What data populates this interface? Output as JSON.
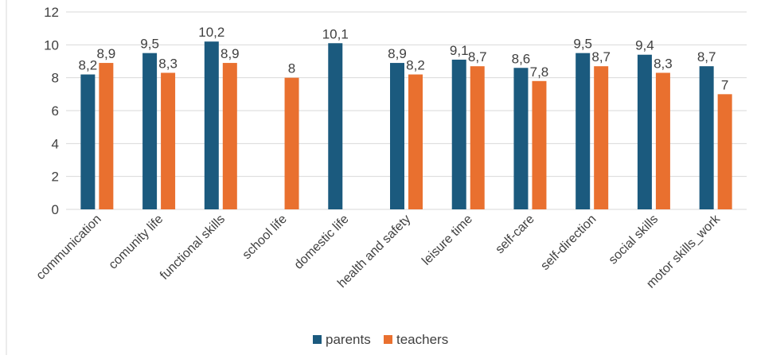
{
  "chart_data": {
    "type": "bar",
    "categories": [
      "communication",
      "comunity life",
      "functional skills",
      "school life",
      "domestic life",
      "health and safety",
      "leisure time",
      "self-care",
      "self-direction",
      "social skills",
      "motor skills_work"
    ],
    "series": [
      {
        "name": "parents",
        "color": "#1b5a7e",
        "values": [
          8.2,
          9.5,
          10.2,
          null,
          10.1,
          8.9,
          9.1,
          8.6,
          9.5,
          9.4,
          8.7
        ],
        "labels": [
          "8,2",
          "9,5",
          "10,2",
          null,
          "10,1",
          "8,9",
          "9,1",
          "8,6",
          "9,5",
          "9,4",
          "8,7"
        ]
      },
      {
        "name": "teachers",
        "color": "#e9702f",
        "values": [
          8.9,
          8.3,
          8.9,
          8,
          null,
          8.2,
          8.7,
          7.8,
          8.7,
          8.3,
          7
        ],
        "labels": [
          "8,9",
          "8,3",
          "8,9",
          "8",
          null,
          "8,2",
          "8,7",
          "7,8",
          "8,7",
          "8,3",
          "7"
        ]
      }
    ],
    "yticks": [
      "0",
      "2",
      "4",
      "6",
      "8",
      "10",
      "12"
    ],
    "ylim": [
      0,
      12
    ],
    "grid": true,
    "legend": "bottom",
    "title": "",
    "xlabel": "",
    "ylabel": ""
  }
}
